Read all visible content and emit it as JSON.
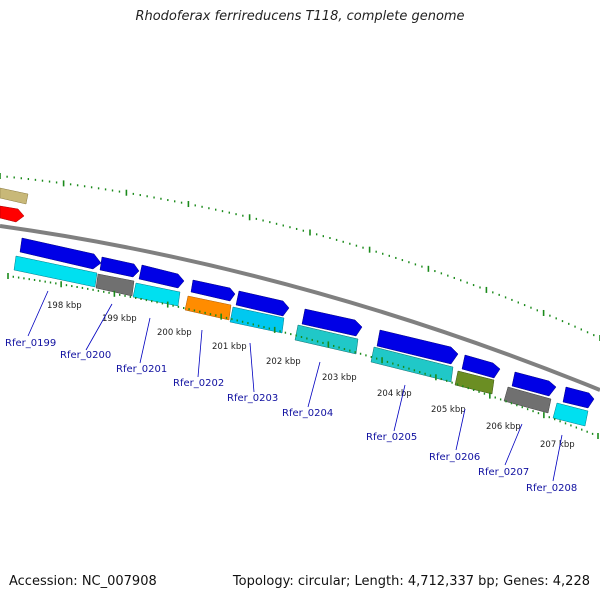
{
  "header": {
    "title": "Rhodoferax ferrireducens T118, complete genome"
  },
  "footer": {
    "accession": "Accession: NC_007908",
    "summary": "Topology: circular; Length: 4,712,337 bp; Genes: 4,228"
  },
  "colors": {
    "backbone": "#808080",
    "tick": "#1a8a1a",
    "forward_gene": "#0000e6",
    "cyan_cds": "#00e0f0",
    "teal_cds": "#20c8c8",
    "gray_cds": "#707070",
    "orange_cds": "#ff8c00",
    "olive_cds": "#6b8e23",
    "khaki_cds": "#c8b878",
    "red_cds": "#ff0000",
    "label": "#1010a0"
  },
  "scale_labels": [
    "198 kbp",
    "199 kbp",
    "200 kbp",
    "201 kbp",
    "202 kbp",
    "203 kbp",
    "204 kbp",
    "205 kbp",
    "206 kbp",
    "207 kbp"
  ],
  "gene_labels": [
    "Rfer_0199",
    "Rfer_0200",
    "Rfer_0201",
    "Rfer_0202",
    "Rfer_0203",
    "Rfer_0204",
    "Rfer_0205",
    "Rfer_0206",
    "Rfer_0207",
    "Rfer_0208"
  ]
}
